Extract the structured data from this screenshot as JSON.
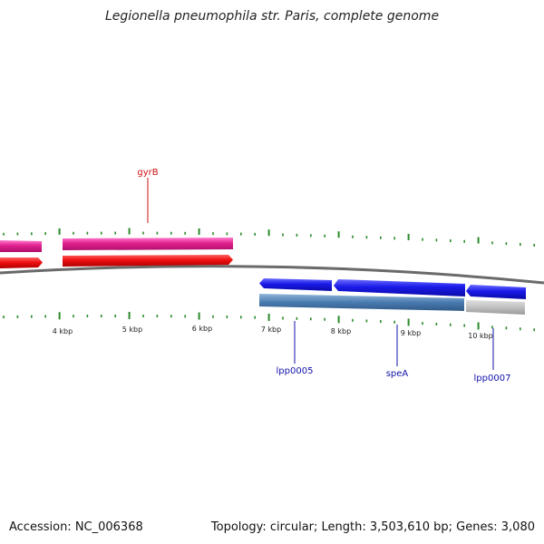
{
  "title": "Legionella pneumophila str. Paris, complete genome",
  "footer": {
    "accession": "Accession: NC_006368",
    "summary": "Topology: circular; Length: 3,503,610 bp; Genes: 3,080"
  },
  "colors": {
    "forward_top": "#e0208f",
    "forward_bottom": "#ee1010",
    "reverse_top": "#1a1ae8",
    "reverse_bottom": "#4a7bb0",
    "reverse_bottom_gray": "#c0c0c0",
    "tick": "#2a8a2a",
    "label_red": "#cc1111",
    "label_blue": "#1111aa"
  },
  "kbp_labels": [
    "4 kbp",
    "5 kbp",
    "6 kbp",
    "7 kbp",
    "8 kbp",
    "9 kbp",
    "10 kbp"
  ],
  "gene_labels": [
    {
      "name": "gyrB",
      "strand": "forward"
    },
    {
      "name": "lpp0005",
      "strand": "reverse"
    },
    {
      "name": "speA",
      "strand": "reverse"
    },
    {
      "name": "lpp0007",
      "strand": "reverse"
    }
  ]
}
